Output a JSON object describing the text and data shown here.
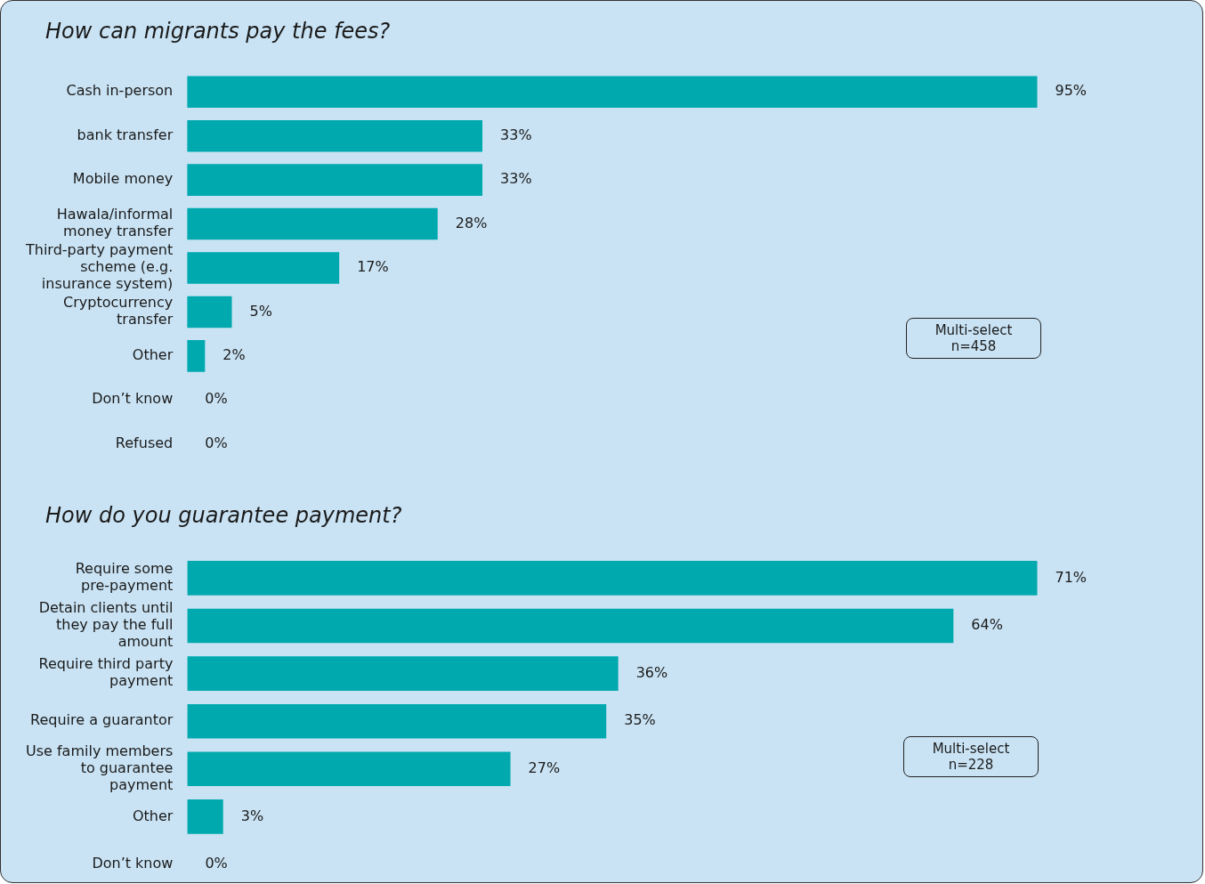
{
  "chart_data": [
    {
      "type": "bar",
      "orientation": "horizontal",
      "title": "How can migrants pay the fees?",
      "color": "#00a9ae",
      "categories": [
        "Cash in-person",
        "bank transfer",
        "Mobile money",
        "Hawala/informal money transfer",
        "Third-party payment scheme (e.g. insurance system)",
        "Cryptocurrency transfer",
        "Other",
        "Don’t know",
        "Refused"
      ],
      "values": [
        95,
        33,
        33,
        28,
        17,
        5,
        2,
        0,
        0
      ],
      "value_labels": [
        "95%",
        "33%",
        "33%",
        "28%",
        "17%",
        "5%",
        "2%",
        "0%",
        "0%"
      ],
      "annotations": [
        "Multi-select\nn=458"
      ]
    },
    {
      "type": "bar",
      "orientation": "horizontal",
      "title": "How do you guarantee payment?",
      "color": "#00a9ae",
      "categories": [
        "Require some pre-payment",
        "Detain clients until they pay the full amount",
        "Require third party payment",
        "Require a guarantor",
        "Use family members to guarantee payment",
        "Other",
        "Don’t know"
      ],
      "values": [
        71,
        64,
        36,
        35,
        27,
        3,
        0
      ],
      "value_labels": [
        "71%",
        "64%",
        "36%",
        "35%",
        "27%",
        "3%",
        "0%"
      ],
      "annotations": [
        "Multi-select\nn=228"
      ]
    }
  ]
}
